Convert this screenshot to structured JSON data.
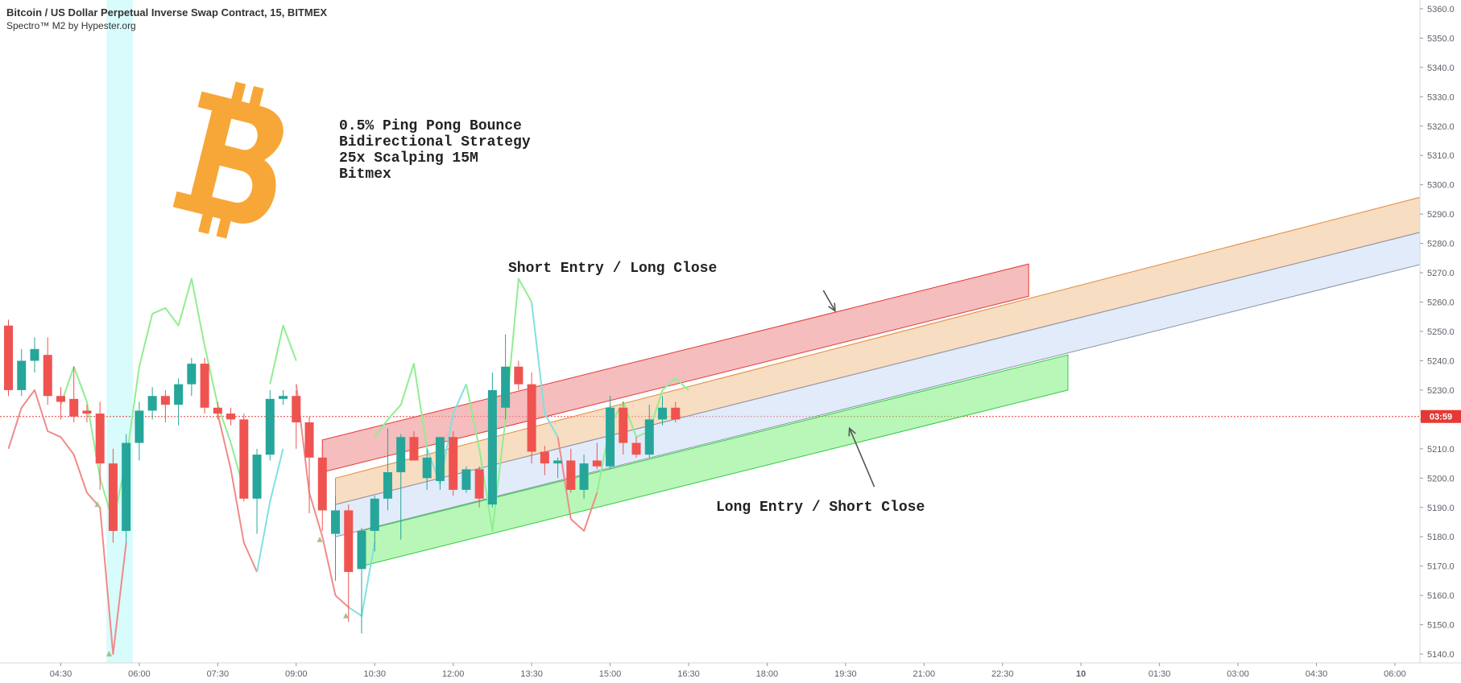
{
  "header": {
    "title": "Bitcoin / US Dollar Perpetual Inverse Swap Contract, 15, BITMEX",
    "indicator": "Spectro™ M2 by Hypester.org"
  },
  "annotations": {
    "strategy_lines": [
      "0.5% Ping Pong Bounce",
      "Bidirectional Strategy",
      "25x Scalping 15M",
      "Bitmex"
    ],
    "short_label": "Short Entry / Long Close",
    "long_label": "Long Entry / Short Close"
  },
  "price_tag": {
    "text": "03:59",
    "price": 5221,
    "color": "#e53935"
  },
  "colors": {
    "up": "#26a69a",
    "down": "#ef5350",
    "bitcoin": "#f7a737"
  },
  "chart_data": {
    "type": "candlestick",
    "yaxis_ticks": [
      5140.0,
      5150.0,
      5160.0,
      5170.0,
      5180.0,
      5190.0,
      5200.0,
      5210.0,
      5220.0,
      5230.0,
      5240.0,
      5250.0,
      5260.0,
      5270.0,
      5280.0,
      5290.0,
      5300.0,
      5310.0,
      5320.0,
      5330.0,
      5340.0,
      5350.0,
      5360.0
    ],
    "ylim": [
      5137,
      5363
    ],
    "xaxis_ticks": [
      {
        "label": "04:30",
        "bar": 4
      },
      {
        "label": "06:00",
        "bar": 10
      },
      {
        "label": "07:30",
        "bar": 16
      },
      {
        "label": "09:00",
        "bar": 22
      },
      {
        "label": "10:30",
        "bar": 28
      },
      {
        "label": "12:00",
        "bar": 34
      },
      {
        "label": "13:30",
        "bar": 40
      },
      {
        "label": "15:00",
        "bar": 46
      },
      {
        "label": "16:30",
        "bar": 52
      },
      {
        "label": "18:00",
        "bar": 58
      },
      {
        "label": "19:30",
        "bar": 64
      },
      {
        "label": "21:00",
        "bar": 70
      },
      {
        "label": "22:30",
        "bar": 76
      },
      {
        "label": "10",
        "bar": 82,
        "bold": true
      },
      {
        "label": "01:30",
        "bar": 88
      },
      {
        "label": "03:00",
        "bar": 94
      },
      {
        "label": "04:30",
        "bar": 100
      },
      {
        "label": "06:00",
        "bar": 106
      }
    ],
    "candles": [
      {
        "o": 5252,
        "h": 5254,
        "l": 5228,
        "c": 5230
      },
      {
        "o": 5230,
        "h": 5244,
        "l": 5228,
        "c": 5240
      },
      {
        "o": 5240,
        "h": 5248,
        "l": 5236,
        "c": 5244
      },
      {
        "o": 5242,
        "h": 5248,
        "l": 5225,
        "c": 5228
      },
      {
        "o": 5228,
        "h": 5231,
        "l": 5220,
        "c": 5226
      },
      {
        "o": 5227,
        "h": 5238,
        "l": 5219,
        "c": 5221
      },
      {
        "o": 5223,
        "h": 5225,
        "l": 5219,
        "c": 5222
      },
      {
        "o": 5222,
        "h": 5226,
        "l": 5196,
        "c": 5205
      },
      {
        "o": 5205,
        "h": 5210,
        "l": 5178,
        "c": 5182
      },
      {
        "o": 5182,
        "h": 5215,
        "l": 5178,
        "c": 5212
      },
      {
        "o": 5212,
        "h": 5226,
        "l": 5206,
        "c": 5223
      },
      {
        "o": 5223,
        "h": 5231,
        "l": 5220,
        "c": 5228
      },
      {
        "o": 5228,
        "h": 5230,
        "l": 5219,
        "c": 5225
      },
      {
        "o": 5225,
        "h": 5234,
        "l": 5218,
        "c": 5232
      },
      {
        "o": 5232,
        "h": 5241,
        "l": 5228,
        "c": 5239
      },
      {
        "o": 5239,
        "h": 5241,
        "l": 5222,
        "c": 5224
      },
      {
        "o": 5224,
        "h": 5226,
        "l": 5220,
        "c": 5222
      },
      {
        "o": 5222,
        "h": 5224,
        "l": 5218,
        "c": 5220
      },
      {
        "o": 5220,
        "h": 5222,
        "l": 5192,
        "c": 5193
      },
      {
        "o": 5193,
        "h": 5210,
        "l": 5181,
        "c": 5208
      },
      {
        "o": 5208,
        "h": 5230,
        "l": 5206,
        "c": 5227
      },
      {
        "o": 5227,
        "h": 5230,
        "l": 5225,
        "c": 5228
      },
      {
        "o": 5228,
        "h": 5230,
        "l": 5210,
        "c": 5219
      },
      {
        "o": 5219,
        "h": 5221,
        "l": 5188,
        "c": 5207
      },
      {
        "o": 5207,
        "h": 5210,
        "l": 5182,
        "c": 5189
      },
      {
        "o": 5181,
        "h": 5194,
        "l": 5165,
        "c": 5189
      },
      {
        "o": 5189,
        "h": 5191,
        "l": 5151,
        "c": 5168
      },
      {
        "o": 5169,
        "h": 5183,
        "l": 5147,
        "c": 5182
      },
      {
        "o": 5182,
        "h": 5194,
        "l": 5175,
        "c": 5193
      },
      {
        "o": 5193,
        "h": 5217,
        "l": 5189,
        "c": 5202
      },
      {
        "o": 5202,
        "h": 5215,
        "l": 5179,
        "c": 5214
      },
      {
        "o": 5214,
        "h": 5216,
        "l": 5206,
        "c": 5206
      },
      {
        "o": 5200,
        "h": 5210,
        "l": 5196,
        "c": 5207
      },
      {
        "o": 5199,
        "h": 5214,
        "l": 5196,
        "c": 5214
      },
      {
        "o": 5214,
        "h": 5216,
        "l": 5194,
        "c": 5196
      },
      {
        "o": 5196,
        "h": 5204,
        "l": 5195,
        "c": 5203
      },
      {
        "o": 5203,
        "h": 5204,
        "l": 5190,
        "c": 5193
      },
      {
        "o": 5191,
        "h": 5236,
        "l": 5190,
        "c": 5230
      },
      {
        "o": 5224,
        "h": 5249,
        "l": 5220,
        "c": 5238
      },
      {
        "o": 5238,
        "h": 5240,
        "l": 5230,
        "c": 5232
      },
      {
        "o": 5232,
        "h": 5236,
        "l": 5205,
        "c": 5209
      },
      {
        "o": 5209,
        "h": 5211,
        "l": 5201,
        "c": 5205
      },
      {
        "o": 5205,
        "h": 5207,
        "l": 5200,
        "c": 5206
      },
      {
        "o": 5206,
        "h": 5210,
        "l": 5195,
        "c": 5196
      },
      {
        "o": 5196,
        "h": 5208,
        "l": 5193,
        "c": 5205
      },
      {
        "o": 5206,
        "h": 5212,
        "l": 5203,
        "c": 5204
      },
      {
        "o": 5204,
        "h": 5228,
        "l": 5203,
        "c": 5224
      },
      {
        "o": 5224,
        "h": 5226,
        "l": 5208,
        "c": 5212
      },
      {
        "o": 5212,
        "h": 5214,
        "l": 5207,
        "c": 5208
      },
      {
        "o": 5208,
        "h": 5225,
        "l": 5207,
        "c": 5220
      },
      {
        "o": 5220,
        "h": 5228,
        "l": 5218,
        "c": 5224
      },
      {
        "o": 5224,
        "h": 5226,
        "l": 5219,
        "c": 5220
      }
    ],
    "bands": [
      {
        "name": "short-zone",
        "fill": "#ef9a9a",
        "opacity": 0.65,
        "stroke": "#e53935",
        "from_bar": 24,
        "to_bar": 78,
        "upper": [
          5213,
          5273
        ],
        "lower": [
          5202,
          5262
        ]
      },
      {
        "name": "orange-zone",
        "fill": "#f2c79a",
        "opacity": 0.6,
        "stroke": "#e08a3a",
        "from_bar": 25,
        "to_bar": 109,
        "upper": [
          5200,
          5297
        ],
        "lower": [
          5191,
          5285
        ]
      },
      {
        "name": "blue-zone",
        "fill": "#c9daf4",
        "opacity": 0.55,
        "stroke": "#8a93a8",
        "from_bar": 25,
        "to_bar": 109,
        "upper": [
          5191,
          5285
        ],
        "lower": [
          5180,
          5274
        ]
      },
      {
        "name": "long-zone",
        "fill": "#7ef07e",
        "opacity": 0.55,
        "stroke": "#2ecc40",
        "from_bar": 27,
        "to_bar": 81,
        "upper": [
          5182,
          5242
        ],
        "lower": [
          5170,
          5230
        ]
      }
    ],
    "arrows": [
      {
        "name": "short-arrow",
        "from": {
          "bar": 62.3,
          "price": 5264
        },
        "to": {
          "bar": 63.2,
          "price": 5257
        }
      },
      {
        "name": "long-arrow",
        "from": {
          "bar": 66.2,
          "price": 5197
        },
        "to": {
          "bar": 64.3,
          "price": 5217
        }
      }
    ],
    "highlight": {
      "from_bar": 7.5,
      "to_bar": 9.5,
      "color": "#d7fcfb"
    },
    "spectro_lines": [
      {
        "name": "spectro-red-a",
        "color": "#f08a8a",
        "points": [
          [
            0,
            5210
          ],
          [
            1,
            5224
          ],
          [
            2,
            5230
          ],
          [
            3,
            5216
          ],
          [
            4,
            5214
          ],
          [
            5,
            5208
          ],
          [
            6,
            5195
          ],
          [
            7,
            5190
          ],
          [
            8,
            5140
          ],
          [
            9,
            5178
          ]
        ]
      },
      {
        "name": "spectro-green-a",
        "color": "#90ee90",
        "points": [
          [
            4,
            5225
          ],
          [
            5,
            5238
          ],
          [
            6,
            5226
          ],
          [
            7,
            5200
          ],
          [
            8,
            5185
          ],
          [
            9,
            5206
          ],
          [
            10,
            5238
          ],
          [
            11,
            5256
          ],
          [
            12,
            5258
          ],
          [
            13,
            5252
          ],
          [
            14,
            5268
          ],
          [
            15,
            5245
          ],
          [
            16,
            5225
          ],
          [
            17,
            5212
          ],
          [
            18,
            5196
          ]
        ]
      },
      {
        "name": "spectro-red-b",
        "color": "#f08a8a",
        "points": [
          [
            16,
            5222
          ],
          [
            17,
            5203
          ],
          [
            18,
            5178
          ],
          [
            19,
            5168
          ]
        ]
      },
      {
        "name": "spectro-cyan-a",
        "color": "#80e0e0",
        "points": [
          [
            19,
            5168
          ],
          [
            20,
            5192
          ],
          [
            21,
            5210
          ]
        ]
      },
      {
        "name": "spectro-green-b",
        "color": "#90ee90",
        "points": [
          [
            20,
            5232
          ],
          [
            21,
            5252
          ],
          [
            22,
            5240
          ]
        ]
      },
      {
        "name": "spectro-red-c",
        "color": "#f08a8a",
        "points": [
          [
            22,
            5232
          ],
          [
            23,
            5195
          ],
          [
            24,
            5180
          ],
          [
            25,
            5160
          ],
          [
            26,
            5156
          ]
        ]
      },
      {
        "name": "spectro-cyan-b",
        "color": "#80e0e0",
        "points": [
          [
            26,
            5156
          ],
          [
            27,
            5153
          ],
          [
            28,
            5178
          ]
        ]
      },
      {
        "name": "spectro-green-c",
        "color": "#90ee90",
        "points": [
          [
            28,
            5214
          ],
          [
            29,
            5220
          ],
          [
            30,
            5225
          ],
          [
            31,
            5239
          ],
          [
            32,
            5210
          ]
        ]
      },
      {
        "name": "spectro-cyan-c",
        "color": "#80e0e0",
        "points": [
          [
            32,
            5210
          ],
          [
            33,
            5198
          ],
          [
            34,
            5222
          ],
          [
            35,
            5232
          ]
        ]
      },
      {
        "name": "spectro-green-d",
        "color": "#90ee90",
        "points": [
          [
            35,
            5232
          ],
          [
            36,
            5210
          ],
          [
            37,
            5182
          ],
          [
            38,
            5220
          ],
          [
            39,
            5268
          ],
          [
            40,
            5260
          ]
        ]
      },
      {
        "name": "spectro-cyan-d",
        "color": "#80e0e0",
        "points": [
          [
            40,
            5260
          ],
          [
            41,
            5222
          ],
          [
            42,
            5214
          ]
        ]
      },
      {
        "name": "spectro-red-d",
        "color": "#f08a8a",
        "points": [
          [
            42,
            5214
          ],
          [
            43,
            5186
          ],
          [
            44,
            5182
          ],
          [
            45,
            5195
          ]
        ]
      },
      {
        "name": "spectro-green-e",
        "color": "#90ee90",
        "points": [
          [
            45,
            5195
          ],
          [
            46,
            5218
          ],
          [
            47,
            5226
          ],
          [
            48,
            5214
          ],
          [
            49,
            5216
          ],
          [
            50,
            5230
          ],
          [
            51,
            5234
          ],
          [
            52,
            5230
          ]
        ]
      }
    ],
    "markers": [
      {
        "bar": 6.8,
        "price": 5191
      },
      {
        "bar": 7.7,
        "price": 5140
      },
      {
        "bar": 23.8,
        "price": 5179
      },
      {
        "bar": 25.8,
        "price": 5153
      }
    ]
  }
}
